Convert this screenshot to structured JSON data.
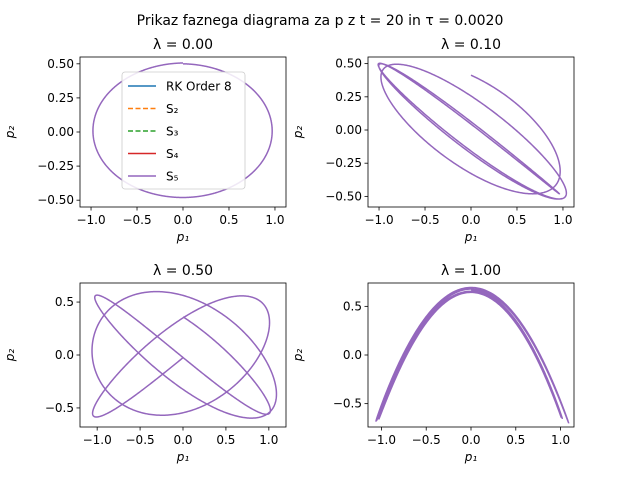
{
  "figure": {
    "suptitle": "Prikaz faznega diagrama za p z t = 20 in τ = 0.0020",
    "xlabel": "p₁",
    "ylabel": "p₂"
  },
  "colors": {
    "rk8": "#1f77b4",
    "s2": "#ff7f0e",
    "s3": "#2ca02c",
    "s4": "#d62728",
    "s5": "#9467bd"
  },
  "chart_data": [
    {
      "type": "line",
      "title": "λ = 0.00",
      "lambda": 0.0,
      "xlabel": "p₁",
      "ylabel": "p₂",
      "xlim": [
        -1.12,
        1.12
      ],
      "ylim": [
        -0.55,
        0.55
      ],
      "xticks": [
        -1.0,
        -0.5,
        0.0,
        0.5,
        1.0
      ],
      "xtick_labels": [
        "−1.0",
        "−0.5",
        "0.0",
        "0.5",
        "1.0"
      ],
      "yticks": [
        -0.5,
        -0.25,
        0.0,
        0.25,
        0.5
      ],
      "ytick_labels": [
        "−0.50",
        "−0.25",
        "0.00",
        "0.25",
        "0.50"
      ],
      "legend": {
        "placement": "upper center",
        "entries": [
          {
            "label": "RK Order 8",
            "style": "solid",
            "color": "#1f77b4"
          },
          {
            "label": "S₂",
            "style": "dashed",
            "color": "#ff7f0e"
          },
          {
            "label": "S₃",
            "style": "dashed",
            "color": "#2ca02c"
          },
          {
            "label": "S₄",
            "style": "solid",
            "color": "#d62728"
          },
          {
            "label": "S₅",
            "style": "solid",
            "color": "#9467bd"
          }
        ]
      },
      "series": [
        {
          "name": "S₅",
          "curve": {
            "amp_x": 1.0,
            "amp_y": 0.5,
            "ratio": 1.0,
            "phase": 0.0,
            "decay": 0.0,
            "turns": 1
          }
        }
      ]
    },
    {
      "type": "line",
      "title": "λ = 0.10",
      "lambda": 0.1,
      "xlabel": "p₁",
      "ylabel": "p₂",
      "xlim": [
        -1.12,
        1.12
      ],
      "ylim": [
        -0.58,
        0.55
      ],
      "xticks": [
        -1.0,
        -0.5,
        0.0,
        0.5,
        1.0
      ],
      "xtick_labels": [
        "−1.0",
        "−0.5",
        "0.0",
        "0.5",
        "1.0"
      ],
      "yticks": [
        -0.5,
        -0.25,
        0.0,
        0.25,
        0.5
      ],
      "ytick_labels": [
        "−0.50",
        "−0.25",
        "0.00",
        "0.25",
        "0.50"
      ],
      "series": [
        {
          "name": "S₅",
          "curve": {
            "amp_x": 1.0,
            "amp_y": 0.5,
            "ratio": 1.07,
            "phase": 0.6,
            "decay": 0.0,
            "turns": 3.2
          }
        }
      ]
    },
    {
      "type": "line",
      "title": "λ = 0.50",
      "lambda": 0.5,
      "xlabel": "p₁",
      "ylabel": "p₂",
      "xlim": [
        -1.2,
        1.2
      ],
      "ylim": [
        -0.68,
        0.68
      ],
      "xticks": [
        -1.0,
        -0.5,
        0.0,
        0.5,
        1.0
      ],
      "xtick_labels": [
        "−1.0",
        "−0.5",
        "0.0",
        "0.5",
        "1.0"
      ],
      "yticks": [
        -0.5,
        0.0,
        0.5
      ],
      "ytick_labels": [
        "−0.5",
        "0.0",
        "0.5"
      ],
      "series": [
        {
          "name": "S₅",
          "curve": {
            "amp_x": 1.05,
            "amp_y": 0.58,
            "ratio": 1.2,
            "phase": 0.9,
            "decay": 0.0,
            "turns": 3.0
          }
        }
      ]
    },
    {
      "type": "line",
      "title": "λ = 1.00",
      "lambda": 1.0,
      "xlabel": "p₁",
      "ylabel": "p₂",
      "xlim": [
        -1.15,
        1.15
      ],
      "ylim": [
        -0.74,
        0.74
      ],
      "xticks": [
        -1.0,
        -0.5,
        0.0,
        0.5,
        1.0
      ],
      "xtick_labels": [
        "−1.0",
        "−0.5",
        "0.0",
        "0.5",
        "1.0"
      ],
      "yticks": [
        -0.5,
        0.0,
        0.5
      ],
      "ytick_labels": [
        "−0.5",
        "0.0",
        "0.5"
      ],
      "series": [
        {
          "name": "S₅",
          "curve": {
            "amp_x": 1.05,
            "amp_y": 0.67,
            "ratio": 2.0,
            "phase": 0.0,
            "decay": 0.0,
            "turns": 3.0
          }
        }
      ]
    }
  ]
}
